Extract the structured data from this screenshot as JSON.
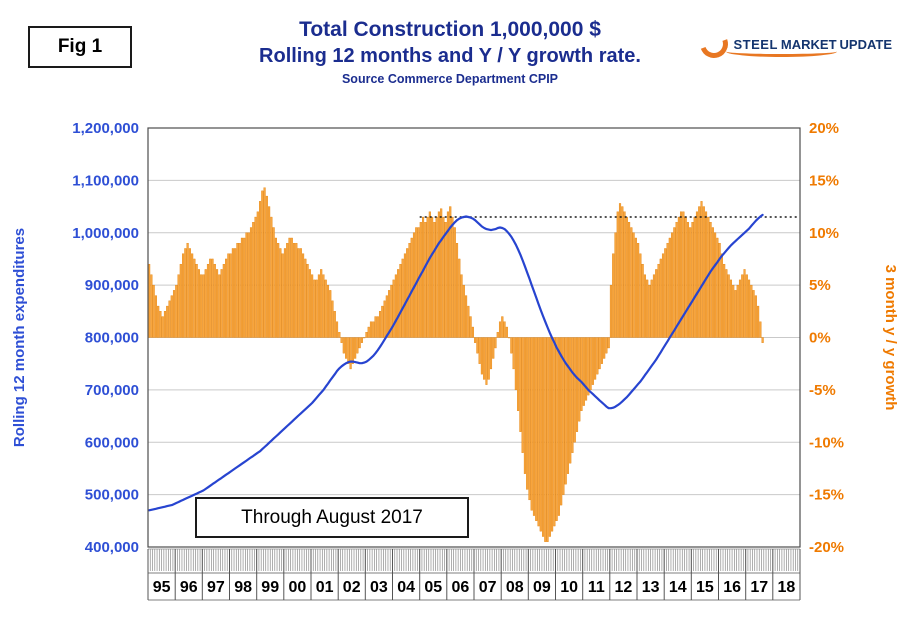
{
  "figure_label": "Fig 1",
  "title": {
    "line1": "Total Construction 1,000,000 $",
    "line2": "Rolling 12 months and Y / Y growth rate.",
    "source": "Source Commerce Department CPIP"
  },
  "logo": {
    "word1": "STEEL",
    "word2": "MARKET",
    "word3": "UPDATE"
  },
  "annotation_box": "Through August 2017",
  "colors": {
    "title_navy": "#1b2d8f",
    "axis_blue": "#2e4fd5",
    "line_blue": "#2744d0",
    "axis_orange": "#ef7a00",
    "bar_fill": "#f8a63e",
    "bar_border": "#e07b00",
    "grid": "#c9c9c9",
    "plot_border": "#4d4d4d",
    "dotted": "#1a1a1a",
    "band_tick": "#8c8c8c",
    "year_text": "#000000"
  },
  "chart_data": {
    "type": "combo bar + line, dual axis",
    "title": "Total Construction 1,000,000 $ — Rolling 12 months and Y / Y growth rate",
    "x_unit": "month",
    "x_range": {
      "start": "1995-01",
      "end": "2018-12",
      "months_total": 288
    },
    "data_through": "2017-08",
    "x_tick_labels": [
      "95",
      "96",
      "97",
      "98",
      "99",
      "00",
      "01",
      "02",
      "03",
      "04",
      "05",
      "06",
      "07",
      "08",
      "09",
      "10",
      "11",
      "12",
      "13",
      "14",
      "15",
      "16",
      "17",
      "18"
    ],
    "grid": "horizontal only",
    "left_axis": {
      "title": "Rolling 12 month expenditures",
      "min": 400000,
      "max": 1200000,
      "tick_step": 100000,
      "ticks": [
        "400,000",
        "500,000",
        "600,000",
        "700,000",
        "800,000",
        "900,000",
        "1,000,000",
        "1,100,000",
        "1,200,000"
      ]
    },
    "right_axis": {
      "title": "3 month y / y growth",
      "min": -20,
      "max": 20,
      "tick_step": 5,
      "ticks": [
        "-20%",
        "-15%",
        "-10%",
        "-5%",
        "0%",
        "5%",
        "10%",
        "15%",
        "20%"
      ]
    },
    "reference_line": {
      "style": "dotted",
      "axis": "right",
      "value": 11.5,
      "start_month_index": 120,
      "end_month_index": 288,
      "note": "horizontal dotted line at ~11.5% growth from 2005 to right edge"
    },
    "series": [
      {
        "name": "Rolling 12 month expenditures",
        "type": "line",
        "axis": "left",
        "color": "#2744d0",
        "values": [
          470000,
          471000,
          472000,
          473000,
          474000,
          475000,
          476000,
          477000,
          478000,
          479000,
          480000,
          482000,
          484000,
          486000,
          488000,
          490000,
          492000,
          494000,
          496000,
          498000,
          500000,
          502000,
          504000,
          506000,
          508000,
          511000,
          514000,
          517000,
          520000,
          523000,
          526000,
          529000,
          532000,
          535000,
          538000,
          541000,
          544000,
          547000,
          550000,
          553000,
          556000,
          559000,
          562000,
          565000,
          568000,
          571000,
          574000,
          577000,
          580000,
          583000,
          587000,
          591000,
          595000,
          599000,
          603000,
          607000,
          611000,
          615000,
          619000,
          623000,
          627000,
          631000,
          635000,
          639000,
          643000,
          647000,
          651000,
          655000,
          659000,
          663000,
          667000,
          671000,
          675000,
          680000,
          685000,
          690000,
          695000,
          700000,
          706000,
          712000,
          718000,
          724000,
          730000,
          736000,
          741000,
          745000,
          748000,
          751000,
          753000,
          754000,
          754000,
          753000,
          752000,
          751000,
          751000,
          752000,
          754000,
          757000,
          761000,
          765000,
          770000,
          776000,
          782000,
          789000,
          796000,
          803000,
          810000,
          817000,
          824000,
          832000,
          840000,
          848000,
          856000,
          864000,
          872000,
          880000,
          888000,
          896000,
          904000,
          912000,
          920000,
          928000,
          936000,
          944000,
          952000,
          959000,
          966000,
          973000,
          980000,
          986000,
          992000,
          998000,
          1004000,
          1010000,
          1015000,
          1020000,
          1024000,
          1027000,
          1029000,
          1030000,
          1031000,
          1030000,
          1029000,
          1027000,
          1024000,
          1020000,
          1016000,
          1012000,
          1009000,
          1007000,
          1006000,
          1005000,
          1006000,
          1007000,
          1009000,
          1010000,
          1009000,
          1007000,
          1003000,
          998000,
          992000,
          985000,
          977000,
          968000,
          958000,
          947000,
          936000,
          924000,
          912000,
          900000,
          888000,
          876000,
          864000,
          852000,
          841000,
          830000,
          819000,
          809000,
          799000,
          790000,
          781000,
          773000,
          765000,
          758000,
          751000,
          745000,
          739000,
          733000,
          728000,
          723000,
          719000,
          715000,
          710000,
          705000,
          700000,
          696000,
          692000,
          688000,
          684000,
          680000,
          676000,
          672000,
          668000,
          665000,
          665000,
          666000,
          668000,
          671000,
          674000,
          678000,
          682000,
          686000,
          691000,
          696000,
          701000,
          706000,
          711000,
          716000,
          722000,
          728000,
          734000,
          740000,
          746000,
          752000,
          758000,
          765000,
          772000,
          779000,
          786000,
          793000,
          800000,
          807000,
          814000,
          821000,
          828000,
          835000,
          842000,
          849000,
          856000,
          863000,
          870000,
          877000,
          884000,
          891000,
          898000,
          905000,
          912000,
          919000,
          926000,
          932000,
          938000,
          944000,
          950000,
          956000,
          961000,
          966000,
          971000,
          976000,
          980000,
          984000,
          988000,
          992000,
          996000,
          1000000,
          1004000,
          1008000,
          1013000,
          1018000,
          1023000,
          1027000,
          1031000,
          1034000
        ]
      },
      {
        "name": "3 month y / y growth (%)",
        "type": "bar",
        "axis": "right",
        "color": "#f8a63e",
        "values": [
          7,
          6,
          5,
          4,
          3,
          2.5,
          2,
          2.5,
          3,
          3.5,
          4,
          4.5,
          5,
          6,
          7,
          8,
          8.5,
          9,
          8.5,
          8,
          7.5,
          7,
          6.5,
          6,
          6,
          6.5,
          7,
          7.5,
          7.5,
          7,
          6.5,
          6,
          6.5,
          7,
          7.5,
          8,
          8,
          8.5,
          8.5,
          9,
          9,
          9.5,
          9.5,
          10,
          10,
          10.5,
          11,
          11.5,
          12,
          13,
          14,
          14.3,
          13.5,
          12.5,
          11.5,
          10.5,
          9.5,
          9,
          8.5,
          8,
          8.5,
          9,
          9.5,
          9.5,
          9,
          9,
          8.5,
          8.5,
          8,
          7.5,
          7,
          6.5,
          6,
          5.5,
          5.5,
          6,
          6.5,
          6,
          5.5,
          5,
          4.5,
          3.5,
          2.5,
          1.5,
          0.5,
          -0.5,
          -1.5,
          -2,
          -2.5,
          -3,
          -2.5,
          -2,
          -1.5,
          -1,
          -0.5,
          0,
          0.5,
          1,
          1.5,
          1.5,
          2,
          2,
          2.5,
          3,
          3.5,
          4,
          4.5,
          5,
          5.5,
          6,
          6.5,
          7,
          7.5,
          8,
          8.5,
          9,
          9.5,
          10,
          10.5,
          10.5,
          11,
          11.5,
          11,
          11.5,
          12,
          11.5,
          11,
          11.5,
          12,
          12.3,
          11.5,
          11,
          12,
          12.5,
          11.5,
          10.5,
          9,
          7.5,
          6,
          5,
          4,
          3,
          2,
          1,
          -0.5,
          -1.5,
          -2.5,
          -3.5,
          -4,
          -4.5,
          -4,
          -3,
          -2,
          -1,
          0.5,
          1.5,
          2,
          1.5,
          1,
          0,
          -1.5,
          -3,
          -5,
          -7,
          -9,
          -11,
          -13,
          -14.5,
          -15.5,
          -16.5,
          -17,
          -17.5,
          -18,
          -18.5,
          -19,
          -19.5,
          -19.5,
          -19,
          -18.5,
          -18,
          -17.5,
          -17,
          -16,
          -15,
          -14,
          -13,
          -12,
          -11,
          -10,
          -9,
          -8,
          -7,
          -6.5,
          -6,
          -5.5,
          -5,
          -4.5,
          -4,
          -3.5,
          -3,
          -2.5,
          -2,
          -1.5,
          -1,
          5,
          8,
          10,
          12,
          12.8,
          12.5,
          12,
          11.5,
          11,
          10.5,
          10,
          9.5,
          9,
          8,
          7,
          6,
          5.5,
          5,
          5.5,
          6,
          6.5,
          7,
          7.5,
          8,
          8.5,
          9,
          9.5,
          10,
          10.5,
          11,
          11.5,
          12,
          12,
          11.5,
          11,
          10.5,
          11,
          11.5,
          12,
          12.5,
          13,
          12.5,
          12,
          11.5,
          11,
          10.5,
          10,
          9.5,
          9,
          8,
          7,
          6.5,
          6,
          5.5,
          5,
          4.5,
          5,
          5.5,
          6,
          6.5,
          6,
          5.5,
          5,
          4.5,
          4,
          3,
          1.5,
          -0.5
        ]
      }
    ]
  }
}
